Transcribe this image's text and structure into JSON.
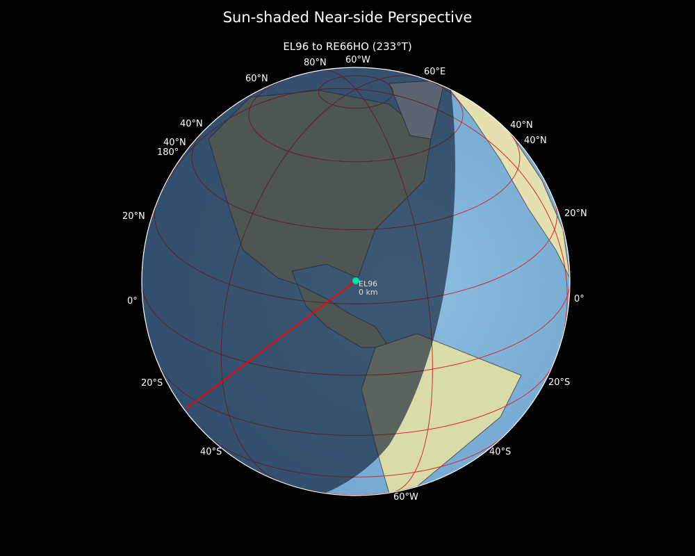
{
  "title": "Sun-shaded Near-side Perspective",
  "subtitle": "EL96 to RE66HO (233°T)",
  "projection": {
    "type": "near-side perspective",
    "center_lat": 26,
    "center_lon": -81
  },
  "graticule_color": "#d62728",
  "path_color": "#ff0000",
  "marker_color": "#00e0a0",
  "marker": {
    "name": "EL96",
    "distance": "0 km"
  },
  "labels": {
    "top": [
      "80°N",
      "60°W",
      "60°N",
      "60°E"
    ],
    "left": [
      "40°N",
      "40°N",
      "180°",
      "20°N",
      "0°",
      "20°S",
      "40°S"
    ],
    "right": [
      "40°N",
      "40°N",
      "20°N",
      "0°",
      "20°S",
      "40°S"
    ],
    "bottom": "60°W"
  }
}
